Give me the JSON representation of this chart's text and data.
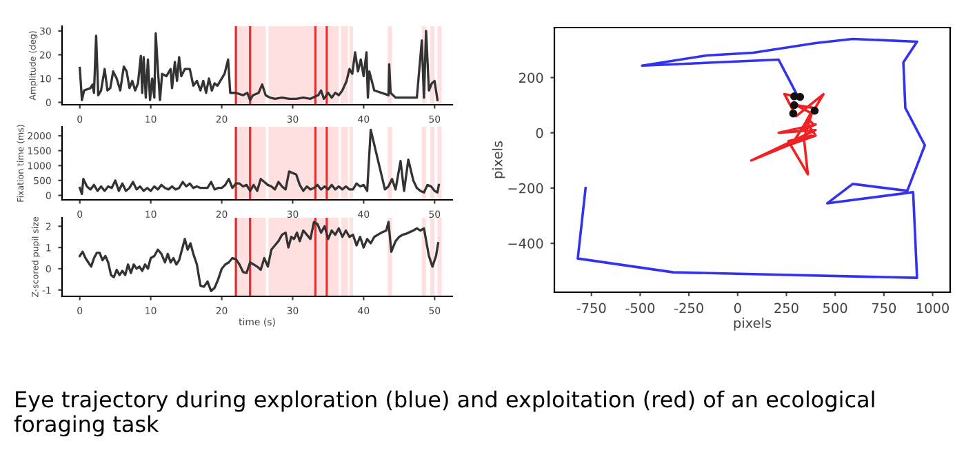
{
  "chart_data": [
    {
      "type": "line",
      "ylabel": "Amplitude (deg)",
      "xlim": [
        -2.5,
        52.5
      ],
      "xticks": [
        0,
        10,
        20,
        30,
        40,
        50
      ],
      "ylim": [
        -1,
        32
      ],
      "yticks": [
        0,
        10,
        20,
        30
      ],
      "grid": false,
      "bands": [
        {
          "axis": "x",
          "from": 22,
          "to": 26.2,
          "color": "#ffe0e0"
        },
        {
          "axis": "x",
          "from": 26.6,
          "to": 33,
          "color": "#ffe0e0"
        },
        {
          "axis": "x",
          "from": 33.5,
          "to": 34.5,
          "color": "#ffe0e0"
        },
        {
          "axis": "x",
          "from": 35,
          "to": 36.5,
          "color": "#ffe0e0"
        },
        {
          "axis": "x",
          "from": 36.8,
          "to": 37.8,
          "color": "#ffe0e0"
        },
        {
          "axis": "x",
          "from": 38,
          "to": 38.5,
          "color": "#ffe0e0"
        },
        {
          "axis": "x",
          "from": 43.4,
          "to": 44,
          "color": "#ffe0e0"
        },
        {
          "axis": "x",
          "from": 48.2,
          "to": 48.8,
          "color": "#ffe0e0"
        },
        {
          "axis": "x",
          "from": 49.4,
          "to": 50,
          "color": "#ffe0e0"
        },
        {
          "axis": "x",
          "from": 50.4,
          "to": 51,
          "color": "#ffe0e0"
        }
      ],
      "ref_lines": [
        {
          "axis": "x",
          "value": 22,
          "color": "#e83030"
        },
        {
          "axis": "x",
          "value": 24,
          "color": "#e83030"
        },
        {
          "axis": "x",
          "value": 33.2,
          "color": "#e83030"
        },
        {
          "axis": "x",
          "value": 34.8,
          "color": "#e83030"
        }
      ],
      "series": [
        {
          "color": "#333333",
          "x": [
            0,
            0.3,
            0.6,
            1.5,
            1.8,
            2.0,
            2.3,
            2.6,
            3.0,
            3.5,
            3.9,
            4.3,
            4.7,
            5.2,
            5.7,
            6.2,
            6.6,
            7.0,
            7.4,
            7.8,
            8.2,
            8.6,
            8.8,
            9.0,
            9.3,
            9.6,
            9.9,
            10.2,
            10.5,
            10.7,
            11.0,
            11.3,
            11.6,
            12.2,
            12.8,
            13.0,
            13.4,
            13.7,
            14.0,
            14.3,
            14.8,
            15.5,
            16.0,
            16.5,
            17.0,
            17.4,
            17.8,
            18.2,
            18.6,
            19.0,
            19.4,
            19.8,
            20.4,
            20.9,
            21.2,
            22,
            23,
            23.6,
            24.0,
            24.4,
            25.2,
            25.7,
            26.2,
            26.8,
            27.5,
            28.5,
            29.5,
            30.5,
            31.5,
            32.5,
            33.2,
            33.6,
            34.0,
            34.4,
            35.0,
            35.5,
            36.0,
            36.5,
            37.0,
            37.6,
            38.0,
            38.4,
            38.8,
            39.2,
            39.6,
            40.0,
            40.4,
            40.6,
            40.8,
            41.5,
            43.5,
            43.6,
            43.8,
            44.5,
            45.5,
            46.5,
            47.5,
            48.2,
            48.5,
            48.8,
            49.2,
            49.6,
            50.0,
            50.4
          ],
          "values": [
            14.5,
            1,
            5,
            6,
            7.5,
            4,
            28,
            3,
            5,
            14,
            5,
            6,
            13,
            10,
            5,
            15,
            13,
            6,
            9,
            5,
            8,
            19.5,
            4,
            19,
            2,
            18,
            1,
            10,
            2,
            29,
            14,
            1,
            12,
            11,
            14,
            6,
            17,
            9,
            19,
            11,
            14,
            14,
            7,
            9,
            5,
            9,
            4,
            10,
            5,
            8,
            7,
            9,
            12,
            18,
            4,
            4,
            3,
            4,
            1,
            3,
            4,
            7.5,
            3,
            2,
            1.5,
            2,
            1.5,
            1.5,
            2,
            1.5,
            2.5,
            3,
            5,
            1.5,
            4,
            2,
            4,
            3,
            5,
            9,
            14,
            12,
            21,
            13,
            18,
            11,
            21,
            2,
            13,
            5,
            3,
            16,
            4,
            2,
            2,
            2,
            2,
            26,
            2,
            30,
            5,
            8,
            9,
            1
          ]
        }
      ]
    },
    {
      "type": "line",
      "ylabel": "Fixation time (ms)",
      "xlim": [
        -2.5,
        52.5
      ],
      "xticks": [
        0,
        10,
        20,
        30,
        40,
        50
      ],
      "ylim": [
        -150,
        2300
      ],
      "yticks": [
        0,
        500,
        1000,
        1500,
        2000
      ],
      "grid": false,
      "bands": [
        {
          "axis": "x",
          "from": 22,
          "to": 26.2,
          "color": "#ffe0e0"
        },
        {
          "axis": "x",
          "from": 26.6,
          "to": 33,
          "color": "#ffe0e0"
        },
        {
          "axis": "x",
          "from": 33.5,
          "to": 34.5,
          "color": "#ffe0e0"
        },
        {
          "axis": "x",
          "from": 35,
          "to": 36.5,
          "color": "#ffe0e0"
        },
        {
          "axis": "x",
          "from": 36.8,
          "to": 37.8,
          "color": "#ffe0e0"
        },
        {
          "axis": "x",
          "from": 38,
          "to": 38.5,
          "color": "#ffe0e0"
        },
        {
          "axis": "x",
          "from": 43.4,
          "to": 44,
          "color": "#ffe0e0"
        },
        {
          "axis": "x",
          "from": 48.2,
          "to": 48.8,
          "color": "#ffe0e0"
        },
        {
          "axis": "x",
          "from": 49.4,
          "to": 50,
          "color": "#ffe0e0"
        },
        {
          "axis": "x",
          "from": 50.4,
          "to": 51,
          "color": "#ffe0e0"
        }
      ],
      "ref_lines": [
        {
          "axis": "x",
          "value": 22,
          "color": "#e83030"
        },
        {
          "axis": "x",
          "value": 24,
          "color": "#e83030"
        },
        {
          "axis": "x",
          "value": 33.2,
          "color": "#e83030"
        },
        {
          "axis": "x",
          "value": 34.8,
          "color": "#e83030"
        }
      ],
      "series": [
        {
          "color": "#333333",
          "x": [
            0,
            0.3,
            0.5,
            1,
            1.5,
            2,
            2.5,
            3,
            3.5,
            4,
            4.5,
            5,
            5.5,
            6,
            6.5,
            7,
            7.5,
            8,
            8.5,
            9,
            9.5,
            10,
            10.5,
            11,
            11.5,
            12,
            12.5,
            13,
            13.5,
            14,
            14.5,
            15,
            15.5,
            16,
            16.5,
            17,
            17.5,
            18,
            18.5,
            19,
            19.5,
            20,
            20.5,
            21,
            21.5,
            22,
            22.5,
            23,
            23.5,
            24,
            24.5,
            25,
            25.5,
            26,
            26.5,
            27,
            27.5,
            28,
            28.5,
            29,
            29.5,
            30,
            30.5,
            31,
            31.5,
            32,
            32.5,
            33,
            33.5,
            34,
            34.5,
            35,
            35.5,
            36,
            36.5,
            37,
            37.5,
            38,
            38.5,
            39,
            39.5,
            40,
            40.5,
            41,
            43,
            43.5,
            44,
            44.5,
            45.2,
            45.7,
            46.3,
            47,
            47.5,
            48,
            48.5,
            49,
            49.5,
            50,
            50.4,
            50.6
          ],
          "values": [
            250,
            50,
            550,
            300,
            200,
            350,
            150,
            300,
            150,
            300,
            250,
            500,
            150,
            400,
            150,
            250,
            450,
            200,
            300,
            150,
            250,
            150,
            300,
            200,
            350,
            250,
            200,
            300,
            200,
            250,
            450,
            300,
            400,
            250,
            300,
            250,
            250,
            250,
            450,
            200,
            250,
            250,
            350,
            550,
            250,
            400,
            400,
            300,
            350,
            150,
            350,
            150,
            550,
            450,
            350,
            300,
            200,
            450,
            300,
            200,
            800,
            750,
            700,
            350,
            150,
            300,
            200,
            250,
            350,
            200,
            300,
            200,
            350,
            200,
            300,
            200,
            300,
            200,
            200,
            400,
            300,
            350,
            150,
            2200,
            200,
            300,
            550,
            200,
            1150,
            150,
            1200,
            500,
            250,
            150,
            100,
            350,
            300,
            150,
            100,
            350
          ]
        }
      ]
    },
    {
      "type": "line",
      "xlabel": "time (s)",
      "ylabel": "Z-scored pupil size",
      "xlim": [
        -2.5,
        52.5
      ],
      "xticks": [
        0,
        10,
        20,
        30,
        40,
        50
      ],
      "ylim": [
        -1.3,
        2.4
      ],
      "yticks": [
        -1,
        0,
        1,
        2
      ],
      "grid": false,
      "bands": [
        {
          "axis": "x",
          "from": 22,
          "to": 26.2,
          "color": "#ffe0e0"
        },
        {
          "axis": "x",
          "from": 26.6,
          "to": 33,
          "color": "#ffe0e0"
        },
        {
          "axis": "x",
          "from": 33.5,
          "to": 34.5,
          "color": "#ffe0e0"
        },
        {
          "axis": "x",
          "from": 35,
          "to": 36.5,
          "color": "#ffe0e0"
        },
        {
          "axis": "x",
          "from": 36.8,
          "to": 37.8,
          "color": "#ffe0e0"
        },
        {
          "axis": "x",
          "from": 38,
          "to": 38.5,
          "color": "#ffe0e0"
        },
        {
          "axis": "x",
          "from": 43.4,
          "to": 44,
          "color": "#ffe0e0"
        },
        {
          "axis": "x",
          "from": 48.2,
          "to": 48.8,
          "color": "#ffe0e0"
        },
        {
          "axis": "x",
          "from": 49.4,
          "to": 50,
          "color": "#ffe0e0"
        },
        {
          "axis": "x",
          "from": 50.4,
          "to": 51,
          "color": "#ffe0e0"
        }
      ],
      "ref_lines": [
        {
          "axis": "x",
          "value": 22,
          "color": "#e83030"
        },
        {
          "axis": "x",
          "value": 24,
          "color": "#e83030"
        },
        {
          "axis": "x",
          "value": 33.2,
          "color": "#e83030"
        },
        {
          "axis": "x",
          "value": 34.8,
          "color": "#e83030"
        }
      ],
      "series": [
        {
          "color": "#333333",
          "x": [
            0,
            0.4,
            0.8,
            1.2,
            1.6,
            2.0,
            2.4,
            2.8,
            3.2,
            3.6,
            4.0,
            4.4,
            4.8,
            5.2,
            5.6,
            6.0,
            6.4,
            6.8,
            7.2,
            7.6,
            8.0,
            8.4,
            8.8,
            9.2,
            9.6,
            10,
            10.5,
            11,
            11.5,
            12,
            12.4,
            12.8,
            13.2,
            13.6,
            14,
            14.4,
            14.8,
            15.2,
            15.6,
            16,
            16.5,
            17,
            17.5,
            18,
            18.5,
            19,
            19.5,
            20,
            20.5,
            21,
            21.5,
            22,
            22.5,
            23,
            23.5,
            24,
            24.5,
            25,
            25.5,
            26,
            26.5,
            27,
            27.5,
            28,
            28.5,
            29,
            29.4,
            29.8,
            30.2,
            30.6,
            31,
            31.5,
            32,
            32.5,
            33,
            33.5,
            34,
            34.5,
            35,
            35.5,
            36,
            36.5,
            37,
            37.5,
            38,
            38.5,
            39,
            39.5,
            40,
            40.5,
            41,
            41.5,
            42,
            42.5,
            43.2,
            43.5,
            43.9,
            44.5,
            45,
            45.5,
            46,
            47,
            47.5,
            48,
            48.5,
            49.2,
            49.7,
            50.2,
            50.5
          ],
          "values": [
            0.6,
            0.8,
            0.5,
            0.3,
            0.1,
            0.5,
            0.75,
            0.75,
            0.4,
            0.6,
            0.3,
            -0.3,
            -0.4,
            -0.05,
            -0.3,
            -0.1,
            -0.3,
            0.2,
            -0.2,
            0.2,
            0,
            0.1,
            -0.1,
            0.2,
            0,
            0.5,
            0.6,
            0.9,
            0.7,
            0.3,
            0.7,
            0.3,
            0.5,
            0.2,
            0.4,
            0.9,
            1.4,
            0.9,
            1.2,
            0.7,
            0.2,
            -0.8,
            -0.85,
            -0.6,
            -1.05,
            -0.9,
            -0.5,
            0,
            0.2,
            0.3,
            0.5,
            0.45,
            0.2,
            -0.15,
            -0.2,
            0.3,
            0.2,
            0.1,
            -0.05,
            0.5,
            0.1,
            0.9,
            1.1,
            1.3,
            1.6,
            1.7,
            1.0,
            1.5,
            1.4,
            1.7,
            1.3,
            1.8,
            1.6,
            1.4,
            2.2,
            2.1,
            1.7,
            2.0,
            1.4,
            1.8,
            1.6,
            1.9,
            1.5,
            1.8,
            1.5,
            1.6,
            1.1,
            1.5,
            1.0,
            1.4,
            1.2,
            1.5,
            1.6,
            1.7,
            1.8,
            2.2,
            0.8,
            1.3,
            1.5,
            1.6,
            1.65,
            1.8,
            1.9,
            1.8,
            1.9,
            0.6,
            0.1,
            0.6,
            1.2
          ]
        }
      ]
    },
    {
      "type": "line",
      "xlabel": "pixels",
      "ylabel": "pixels",
      "xlim": [
        -940,
        1090
      ],
      "xticks": [
        -750,
        -500,
        -250,
        0,
        250,
        500,
        750,
        1000
      ],
      "ylim": [
        -577,
        381
      ],
      "yticks": [
        {
          "value": -400,
          "label": "−400"
        },
        {
          "value": -200,
          "label": "−200"
        },
        0,
        200
      ],
      "grid": false,
      "annotations": [
        "Eye trajectory during exploration (blue) and exploitation (red) of an ecological foraging task"
      ],
      "series": [
        {
          "color": "#3333ee",
          "x": [
            -780,
            -820,
            -330,
            920,
            900,
            460,
            590,
            870,
            960,
            860,
            850,
            920,
            590,
            400,
            80,
            -160,
            -490,
            210,
            310
          ],
          "values": [
            -200,
            -455,
            -505,
            -525,
            -215,
            -255,
            -185,
            -210,
            -45,
            90,
            255,
            330,
            340,
            325,
            290,
            280,
            243,
            265,
            130
          ]
        },
        {
          "color": "#ee2222",
          "x": [
            310,
            240,
            300,
            440,
            330,
            400,
            210,
            400,
            70,
            380,
            260,
            360,
            340,
            380,
            300,
            390,
            350,
            400,
            280,
            360,
            390
          ],
          "values": [
            130,
            140,
            60,
            140,
            10,
            30,
            0,
            10,
            -100,
            -10,
            -30,
            -150,
            -20,
            70,
            100,
            90,
            40,
            -10,
            -40,
            50,
            30
          ]
        },
        {
          "type": "scatter",
          "color": "#111111",
          "marker": "circle",
          "x": [
            290,
            320,
            290,
            285,
            395
          ],
          "values": [
            132,
            130,
            100,
            70,
            80
          ]
        }
      ]
    }
  ]
}
